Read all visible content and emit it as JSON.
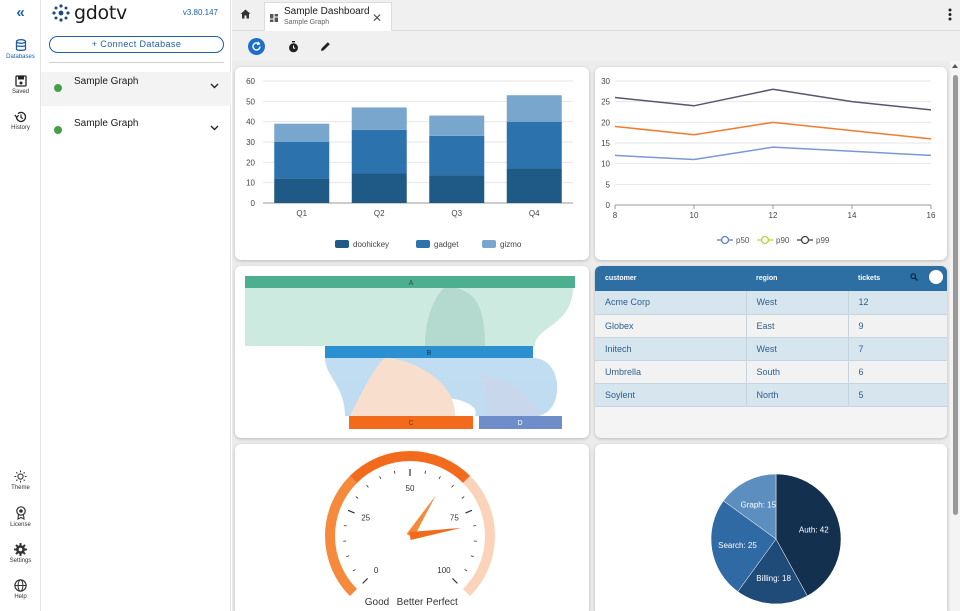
{
  "app": {
    "name": "gdotv",
    "version": "v3.80.147"
  },
  "rail": {
    "top": [
      {
        "label": "Databases",
        "icon": "database-icon",
        "active": true
      },
      {
        "label": "Saved",
        "icon": "save-icon"
      },
      {
        "label": "History",
        "icon": "history-icon"
      }
    ],
    "bottom": [
      {
        "label": "Theme",
        "icon": "theme-icon"
      },
      {
        "label": "License",
        "icon": "license-icon"
      },
      {
        "label": "Settings",
        "icon": "settings-icon"
      },
      {
        "label": "Help",
        "icon": "help-icon"
      }
    ]
  },
  "panel": {
    "connect_label": "+ Connect Database",
    "graphs": [
      {
        "name": "Sample Graph",
        "status_color": "#43a047"
      },
      {
        "name": "Sample Graph",
        "status_color": "#43a047"
      }
    ]
  },
  "tab": {
    "title": "Sample Dashboard",
    "subtitle": "Sample Graph"
  },
  "colors": {
    "accent": "#1f5fa8",
    "table_header": "#2e6fa3",
    "gauge": "#f26b1d"
  },
  "charts": {
    "bar": {
      "chart_data": {
        "type": "bar",
        "stacked": true,
        "categories": [
          "Q1",
          "Q2",
          "Q3",
          "Q4"
        ],
        "series": [
          {
            "name": "doohickey",
            "color": "#1f5a86",
            "values": [
              12,
              14.5,
              13.5,
              17
            ]
          },
          {
            "name": "gadget",
            "color": "#2c73ad",
            "values": [
              18,
              21.5,
              19.5,
              23
            ]
          },
          {
            "name": "gizmo",
            "color": "#79a6cc",
            "values": [
              9,
              11,
              10,
              13
            ]
          }
        ],
        "y_ticks": [
          0,
          10,
          20,
          30,
          40,
          50,
          60
        ],
        "ylim": [
          0,
          60
        ]
      }
    },
    "line": {
      "chart_data": {
        "type": "line",
        "x": [
          8,
          10,
          12,
          14,
          16
        ],
        "series": [
          {
            "name": "p50",
            "color": "#7b97d6",
            "values": [
              12,
              11,
              14,
              13,
              12
            ]
          },
          {
            "name": "p90",
            "color": "#f07b2f",
            "values": [
              19,
              17,
              20,
              18,
              16
            ]
          },
          {
            "name": "p99",
            "color": "#5b5370",
            "values": [
              26,
              24,
              28,
              25,
              23
            ]
          }
        ],
        "x_ticks": [
          8,
          10,
          12,
          14,
          16
        ],
        "y_ticks": [
          0,
          5,
          10,
          15,
          20,
          25,
          30
        ],
        "xlim": [
          8,
          16
        ],
        "ylim": [
          0,
          30
        ],
        "legend_position": "bottom"
      }
    },
    "sankey": {
      "chart_data": {
        "type": "sankey",
        "nodes": [
          {
            "name": "A",
            "color": "#4caf8f"
          },
          {
            "name": "B",
            "color": "#2b8fd0"
          },
          {
            "name": "C",
            "color": "#f26b1d"
          },
          {
            "name": "D",
            "color": "#6e8dc9"
          }
        ],
        "links": [
          {
            "source": "A",
            "target": "B",
            "value": 7
          },
          {
            "source": "A",
            "target": "C",
            "value": 3
          },
          {
            "source": "B",
            "target": "C",
            "value": 5
          },
          {
            "source": "B",
            "target": "D",
            "value": 2
          },
          {
            "source": "A",
            "target": "D",
            "value": 1
          }
        ]
      }
    },
    "table": {
      "columns": [
        "customer",
        "region",
        "tickets"
      ],
      "rows": [
        [
          "Acme Corp",
          "West",
          "12"
        ],
        [
          "Globex",
          "East",
          "9"
        ],
        [
          "Initech",
          "West",
          "7"
        ],
        [
          "Umbrella",
          "South",
          "6"
        ],
        [
          "Soylent",
          "North",
          "5"
        ]
      ]
    },
    "gauge": {
      "chart_data": {
        "type": "gauge",
        "min": 0,
        "max": 100,
        "ticks": [
          0,
          25,
          50,
          75,
          100
        ],
        "bands": [
          "Good",
          "Better",
          "Perfect"
        ],
        "value": 80,
        "pointers": [
          62,
          80
        ]
      }
    },
    "pie": {
      "chart_data": {
        "type": "pie",
        "slices": [
          {
            "label": "Auth",
            "value": 42,
            "color": "#14304f"
          },
          {
            "label": "Billing",
            "value": 18,
            "color": "#1f4b78"
          },
          {
            "label": "Search",
            "value": 25,
            "color": "#2f6aa5"
          },
          {
            "label": "Graph",
            "value": 15,
            "color": "#5c8ebf"
          }
        ]
      }
    }
  }
}
